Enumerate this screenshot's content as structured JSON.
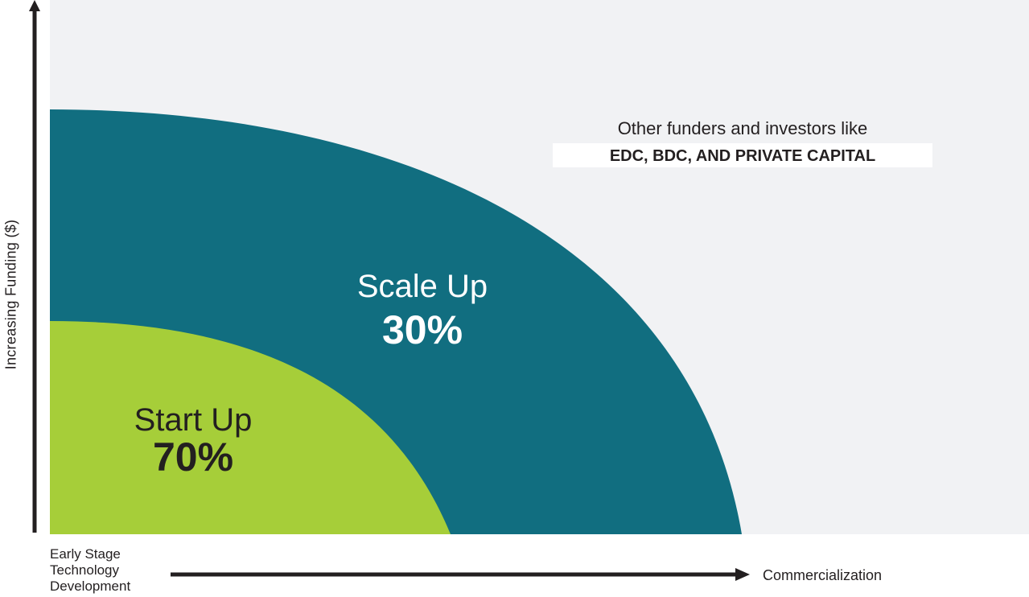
{
  "colors": {
    "background": "#f1f2f4",
    "start_up": "#a6ce39",
    "scale_up": "#116e80",
    "axis": "#231f20",
    "text_dark": "#231f20",
    "text_light": "#ffffff"
  },
  "y_axis": {
    "label": "Increasing Funding ($)"
  },
  "x_axis": {
    "start_label_lines": [
      "Early Stage",
      "Technology",
      "Development"
    ],
    "end_label": "Commercialization"
  },
  "segments": [
    {
      "name": "Start Up",
      "percent": "70%"
    },
    {
      "name": "Scale Up",
      "percent": "30%"
    }
  ],
  "others": {
    "line": "Other funders and investors like",
    "highlight": "EDC, BDC, AND PRIVATE CAPITAL"
  }
}
